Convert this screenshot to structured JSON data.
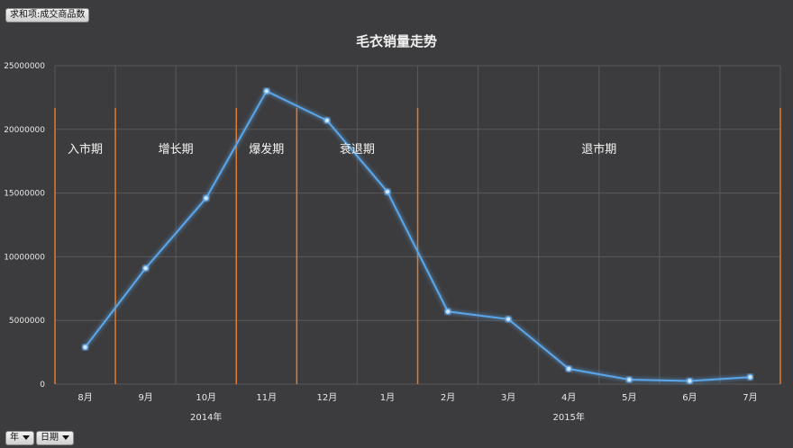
{
  "pivot_fields": {
    "values_field": "求和项:成交商品数",
    "row_fields": [
      "年",
      "日期"
    ]
  },
  "colors": {
    "background": "#3c3c3e",
    "line": "#5aa6ea",
    "grid": "#595959",
    "phase_divider": "#e07a2e",
    "text": "#e8e8e8"
  },
  "chart_data": {
    "type": "line",
    "title": "毛衣销量走势",
    "xlabel": "",
    "ylabel": "",
    "categories": [
      "8月",
      "9月",
      "10月",
      "11月",
      "12月",
      "1月",
      "2月",
      "3月",
      "4月",
      "5月",
      "6月",
      "7月"
    ],
    "category_groups": [
      {
        "label": "2014年",
        "categories": [
          "8月",
          "9月",
          "10月",
          "11月",
          "12月"
        ]
      },
      {
        "label": "2015年",
        "categories": [
          "1月",
          "2月",
          "3月",
          "4月",
          "5月",
          "6月",
          "7月"
        ]
      }
    ],
    "series": [
      {
        "values": [
          2900000,
          9100000,
          14600000,
          23000000,
          20700000,
          15100000,
          5700000,
          5100000,
          1200000,
          350000,
          250000,
          550000
        ]
      }
    ],
    "ylim": [
      0,
      25000000
    ],
    "yticks": [
      0,
      5000000,
      10000000,
      15000000,
      20000000,
      25000000
    ],
    "ytick_labels": [
      "0",
      "5000000",
      "10000000",
      "15000000",
      "20000000",
      "25000000"
    ],
    "grid": true,
    "legend": "none",
    "phases": [
      {
        "label": "入市期",
        "from_index": 0,
        "to_index": 0
      },
      {
        "label": "增长期",
        "from_index": 1,
        "to_index": 2
      },
      {
        "label": "爆发期",
        "from_index": 3,
        "to_index": 3
      },
      {
        "label": "衰退期",
        "from_index": 4,
        "to_index": 5
      },
      {
        "label": "退市期",
        "from_index": 6,
        "to_index": 11
      }
    ]
  }
}
